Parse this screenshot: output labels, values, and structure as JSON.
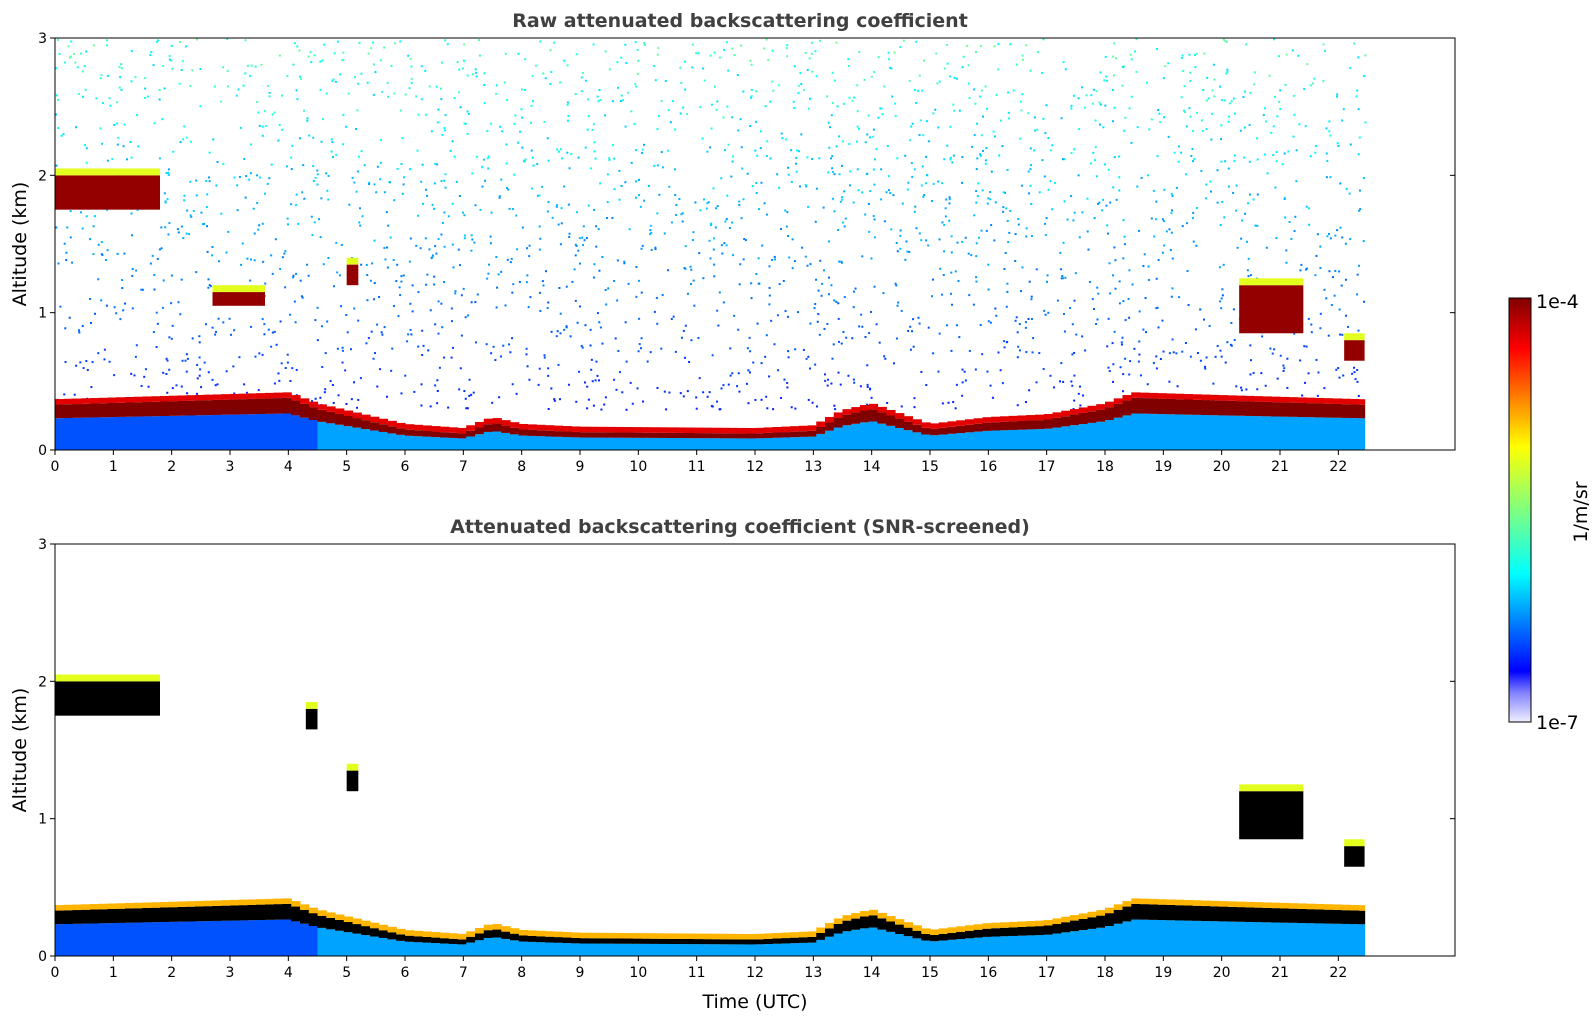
{
  "figure": {
    "xlabel": "Time (UTC)",
    "colorbar": {
      "label": "1/m/sr",
      "max_label": "1e-4",
      "min_label": "1e-7",
      "min": 1e-07,
      "max": 0.0001,
      "scale": "log",
      "colormap": "jet"
    }
  },
  "chart_data": [
    {
      "type": "heatmap",
      "title": "Raw attenuated backscattering coefficient",
      "xlabel": "",
      "ylabel": "Altitude (km)",
      "xlim": [
        0,
        24
      ],
      "ylim": [
        0,
        3
      ],
      "xticks": [
        0,
        1,
        2,
        3,
        4,
        5,
        6,
        7,
        8,
        9,
        10,
        11,
        12,
        13,
        14,
        15,
        16,
        17,
        18,
        19,
        20,
        21,
        22
      ],
      "yticks": [
        0,
        1,
        2,
        3
      ],
      "data_end_hour": 22.45,
      "layer_top_km": [
        [
          0,
          0.33
        ],
        [
          4,
          0.38
        ],
        [
          4.5,
          0.3
        ],
        [
          5,
          0.25
        ],
        [
          6,
          0.15
        ],
        [
          7,
          0.12
        ],
        [
          7.5,
          0.2
        ],
        [
          8,
          0.15
        ],
        [
          9,
          0.13
        ],
        [
          12,
          0.12
        ],
        [
          13,
          0.14
        ],
        [
          13.5,
          0.25
        ],
        [
          14,
          0.3
        ],
        [
          15,
          0.15
        ],
        [
          16,
          0.2
        ],
        [
          17,
          0.22
        ],
        [
          18,
          0.3
        ],
        [
          18.5,
          0.38
        ],
        [
          20,
          0.36
        ],
        [
          22.4,
          0.33
        ]
      ],
      "cloud_layers": [
        {
          "t0": 0,
          "t1": 1.8,
          "base_km": 1.75,
          "top_km": 2.0
        },
        {
          "t0": 2.7,
          "t1": 3.6,
          "base_km": 1.05,
          "top_km": 1.15
        },
        {
          "t0": 5.0,
          "t1": 5.2,
          "base_km": 1.2,
          "top_km": 1.35
        },
        {
          "t0": 20.3,
          "t1": 21.4,
          "base_km": 0.85,
          "top_km": 1.2
        },
        {
          "t0": 22.1,
          "t1": 22.45,
          "base_km": 0.65,
          "top_km": 0.8
        }
      ],
      "background_noise": true
    },
    {
      "type": "heatmap",
      "title": "Attenuated backscattering coefficient (SNR-screened)",
      "xlabel": "Time (UTC)",
      "ylabel": "Altitude (km)",
      "xlim": [
        0,
        24
      ],
      "ylim": [
        0,
        3
      ],
      "xticks": [
        0,
        1,
        2,
        3,
        4,
        5,
        6,
        7,
        8,
        9,
        10,
        11,
        12,
        13,
        14,
        15,
        16,
        17,
        18,
        19,
        20,
        21,
        22
      ],
      "yticks": [
        0,
        1,
        2,
        3
      ],
      "data_end_hour": 22.45,
      "layer_top_km": [
        [
          0,
          0.33
        ],
        [
          4,
          0.38
        ],
        [
          4.5,
          0.3
        ],
        [
          5,
          0.25
        ],
        [
          6,
          0.15
        ],
        [
          7,
          0.12
        ],
        [
          7.5,
          0.2
        ],
        [
          8,
          0.15
        ],
        [
          9,
          0.13
        ],
        [
          12,
          0.12
        ],
        [
          13,
          0.14
        ],
        [
          13.5,
          0.25
        ],
        [
          14,
          0.3
        ],
        [
          15,
          0.15
        ],
        [
          16,
          0.2
        ],
        [
          17,
          0.22
        ],
        [
          18,
          0.3
        ],
        [
          18.5,
          0.38
        ],
        [
          20,
          0.36
        ],
        [
          22.4,
          0.33
        ]
      ],
      "cloud_layers": [
        {
          "t0": 0,
          "t1": 1.8,
          "base_km": 1.75,
          "top_km": 2.0
        },
        {
          "t0": 4.3,
          "t1": 4.5,
          "base_km": 1.65,
          "top_km": 1.8
        },
        {
          "t0": 5.0,
          "t1": 5.2,
          "base_km": 1.2,
          "top_km": 1.35
        },
        {
          "t0": 20.3,
          "t1": 21.4,
          "base_km": 0.85,
          "top_km": 1.2
        },
        {
          "t0": 22.1,
          "t1": 22.45,
          "base_km": 0.65,
          "top_km": 0.8
        }
      ],
      "background_noise": false
    }
  ]
}
